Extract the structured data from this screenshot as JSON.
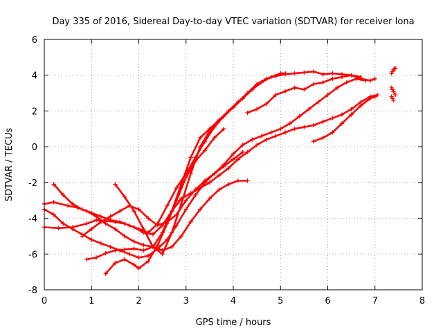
{
  "chart_data": {
    "type": "scatter",
    "title": "Day 335 of 2016, Sidereal Day-to-day VTEC variation (SDTVAR) for receiver Iona",
    "xlabel": "GPS time / hours",
    "ylabel": "SDTVAR / TECUs",
    "xlim": [
      0,
      8
    ],
    "ylim": [
      -8,
      6
    ],
    "xticks": [
      0,
      1,
      2,
      3,
      4,
      5,
      6,
      7,
      8
    ],
    "yticks": [
      -8,
      -6,
      -4,
      -2,
      0,
      2,
      4,
      6
    ],
    "grid": true,
    "legend": "none",
    "marker": "+",
    "color": "#ff0000",
    "series": [
      {
        "x": [
          0.0,
          0.2,
          0.5,
          0.7,
          0.9,
          1.1,
          1.3,
          1.5,
          1.7,
          1.9,
          2.1,
          2.3,
          2.5,
          2.7,
          2.9,
          3.1,
          3.3,
          3.5,
          3.7,
          3.9,
          4.1,
          4.3
        ],
        "y": [
          -3.2,
          -3.1,
          -3.3,
          -3.4,
          -3.6,
          -3.9,
          -4.3,
          -4.6,
          -5.0,
          -5.3,
          -5.5,
          -5.6,
          -5.8,
          -5.6,
          -5.0,
          -4.2,
          -3.5,
          -2.9,
          -2.4,
          -2.1,
          -1.9,
          -1.9
        ]
      },
      {
        "x": [
          0.0,
          0.3,
          0.6,
          0.9,
          1.1,
          1.3,
          1.5,
          1.7,
          1.9,
          2.1,
          2.3,
          2.5,
          2.7,
          2.9,
          3.1,
          3.3,
          3.5,
          3.7,
          3.9,
          4.1,
          4.3,
          4.5,
          4.7,
          4.9,
          5.1,
          5.3,
          5.5,
          5.7,
          5.9,
          6.1,
          6.3,
          6.5,
          6.7,
          6.9,
          7.05
        ],
        "y": [
          -4.5,
          -4.55,
          -4.5,
          -4.3,
          -4.1,
          -4.15,
          -4.2,
          -4.3,
          -4.5,
          -4.8,
          -4.9,
          -4.4,
          -3.6,
          -2.9,
          -2.6,
          -2.3,
          -2.0,
          -1.6,
          -1.2,
          -0.7,
          -0.3,
          0.1,
          0.4,
          0.6,
          0.8,
          1.0,
          1.1,
          1.2,
          1.4,
          1.6,
          1.8,
          2.1,
          2.5,
          2.8,
          2.9
        ]
      },
      {
        "x": [
          0.0,
          0.2,
          0.4,
          0.6,
          0.8,
          1.0,
          1.2,
          1.4,
          1.6,
          1.8,
          2.0,
          2.2,
          2.4,
          2.6,
          2.8,
          3.0,
          3.2,
          3.4,
          3.6,
          3.8,
          4.0,
          4.2,
          4.4,
          4.6,
          4.8,
          5.0,
          5.2,
          5.4,
          5.6,
          5.8,
          6.0,
          6.2,
          6.4,
          6.6,
          6.8
        ],
        "y": [
          -3.5,
          -3.8,
          -4.3,
          -4.6,
          -4.9,
          -5.2,
          -5.4,
          -5.6,
          -5.8,
          -6.0,
          -6.2,
          -6.1,
          -5.7,
          -5.2,
          -4.4,
          -3.5,
          -2.7,
          -2.0,
          -1.5,
          -1.0,
          -0.4,
          0.1,
          0.4,
          0.6,
          0.8,
          1.0,
          1.3,
          1.7,
          2.1,
          2.5,
          2.9,
          3.3,
          3.6,
          3.8,
          3.7
        ]
      },
      {
        "x": [
          0.2,
          0.4,
          0.6,
          0.8,
          1.0,
          1.2,
          1.4,
          1.6,
          1.8,
          2.0,
          2.2,
          2.4,
          2.6,
          2.8,
          3.0,
          3.2,
          3.4,
          3.6,
          3.8,
          4.0,
          4.2,
          4.4,
          4.6,
          4.8,
          5.0,
          5.1
        ],
        "y": [
          -2.1,
          -2.7,
          -3.2,
          -3.5,
          -3.7,
          -3.9,
          -4.1,
          -4.2,
          -4.4,
          -4.6,
          -4.8,
          -4.3,
          -3.3,
          -2.3,
          -1.5,
          -0.6,
          0.3,
          1.1,
          1.7,
          2.2,
          2.7,
          3.2,
          3.6,
          3.9,
          4.1,
          4.1
        ]
      },
      {
        "x": [
          0.8,
          1.0,
          1.2,
          1.4,
          1.6,
          1.8,
          2.0,
          2.2,
          2.4,
          2.6,
          2.8,
          3.0,
          3.2,
          3.4,
          3.6,
          3.8,
          4.0,
          4.2
        ],
        "y": [
          -5.0,
          -4.6,
          -4.2,
          -3.9,
          -3.6,
          -3.3,
          -3.5,
          -4.0,
          -4.4,
          -4.2,
          -3.8,
          -3.0,
          -2.4,
          -1.9,
          -1.5,
          -1.1,
          -0.7,
          -0.3
        ]
      },
      {
        "x": [
          1.5,
          1.7,
          1.9,
          2.1,
          2.3,
          2.5,
          2.7,
          2.9,
          3.1,
          3.3,
          3.5,
          3.7
        ],
        "y": [
          -2.1,
          -2.8,
          -3.6,
          -4.6,
          -5.6,
          -6.0,
          -4.8,
          -3.2,
          -1.5,
          0.0,
          0.9,
          1.5
        ]
      },
      {
        "x": [
          0.9,
          1.1,
          1.3,
          1.5,
          1.7,
          1.9,
          2.1,
          2.3,
          2.5,
          2.7,
          2.9,
          3.1,
          3.3,
          3.5,
          3.7,
          3.9,
          4.1,
          4.3,
          4.5,
          4.7,
          4.9,
          5.1,
          5.3,
          5.5,
          5.7,
          5.9,
          6.1,
          6.3,
          6.5,
          6.7
        ],
        "y": [
          -6.3,
          -6.2,
          -5.95,
          -5.8,
          -5.75,
          -5.7,
          -5.8,
          -5.6,
          -4.8,
          -3.6,
          -2.1,
          -0.6,
          0.5,
          1.0,
          1.5,
          2.0,
          2.5,
          3.0,
          3.5,
          3.8,
          3.95,
          4.05,
          4.1,
          4.15,
          4.2,
          4.05,
          4.1,
          4.05,
          4.0,
          3.9
        ]
      },
      {
        "x": [
          1.3,
          1.5,
          1.7,
          1.9,
          2.0,
          2.2,
          2.4,
          2.6,
          2.8,
          3.0,
          3.2,
          3.4,
          3.6,
          3.8
        ],
        "y": [
          -7.1,
          -6.5,
          -6.3,
          -6.6,
          -6.8,
          -6.4,
          -5.5,
          -4.3,
          -3.0,
          -1.7,
          -0.8,
          -0.2,
          0.5,
          1.0
        ]
      },
      {
        "x": [
          4.3,
          4.5,
          4.7,
          4.9,
          5.1,
          5.3,
          5.5,
          5.7,
          5.9,
          6.1,
          6.3,
          6.5,
          6.7,
          6.9,
          7.0
        ],
        "y": [
          1.9,
          2.1,
          2.4,
          2.9,
          3.1,
          3.3,
          3.2,
          3.5,
          3.6,
          3.8,
          3.9,
          4.0,
          3.8,
          3.7,
          3.8
        ]
      },
      {
        "x": [
          5.7,
          5.9,
          6.1,
          6.3,
          6.5,
          6.7,
          6.9,
          7.0
        ],
        "y": [
          0.3,
          0.5,
          0.8,
          1.3,
          1.8,
          2.3,
          2.7,
          2.8
        ]
      },
      {
        "x": [
          7.35,
          7.37,
          7.39,
          7.41,
          7.43,
          7.35,
          7.37,
          7.39,
          7.41,
          7.43,
          7.35,
          7.37,
          7.39
        ],
        "y": [
          4.1,
          4.2,
          4.3,
          4.35,
          4.4,
          3.3,
          3.2,
          3.1,
          3.0,
          2.9,
          2.8,
          2.7,
          2.6
        ]
      }
    ]
  }
}
